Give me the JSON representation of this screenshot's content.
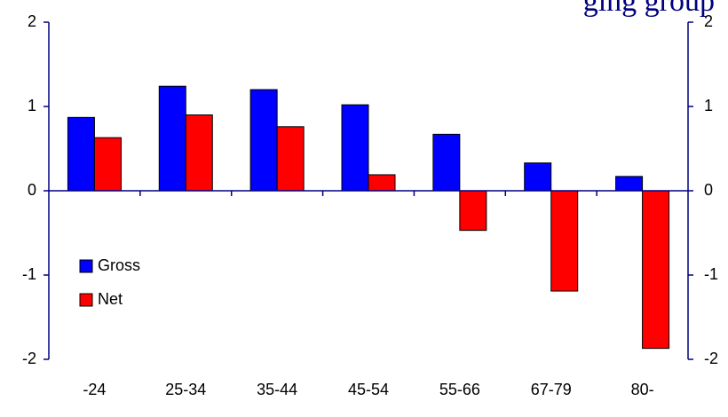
{
  "chart_data": {
    "type": "bar",
    "title": "ging group",
    "categories": [
      "-24",
      "25-34",
      "35-44",
      "45-54",
      "55-66",
      "67-79",
      "80-"
    ],
    "series": [
      {
        "name": "Gross",
        "color": "#0000ff",
        "values": [
          0.87,
          1.24,
          1.2,
          1.02,
          0.67,
          0.33,
          0.17
        ]
      },
      {
        "name": "Net",
        "color": "#ff0000",
        "values": [
          0.63,
          0.9,
          0.76,
          0.19,
          -0.47,
          -1.19,
          -1.87
        ]
      }
    ],
    "ylim": [
      -2,
      2
    ],
    "yticks": [
      -2,
      -1,
      0,
      1,
      2
    ],
    "y2lim": [
      -2,
      2
    ],
    "y2ticks": [
      -2,
      -1,
      0,
      1,
      2
    ],
    "legend": "left",
    "grid": false
  }
}
